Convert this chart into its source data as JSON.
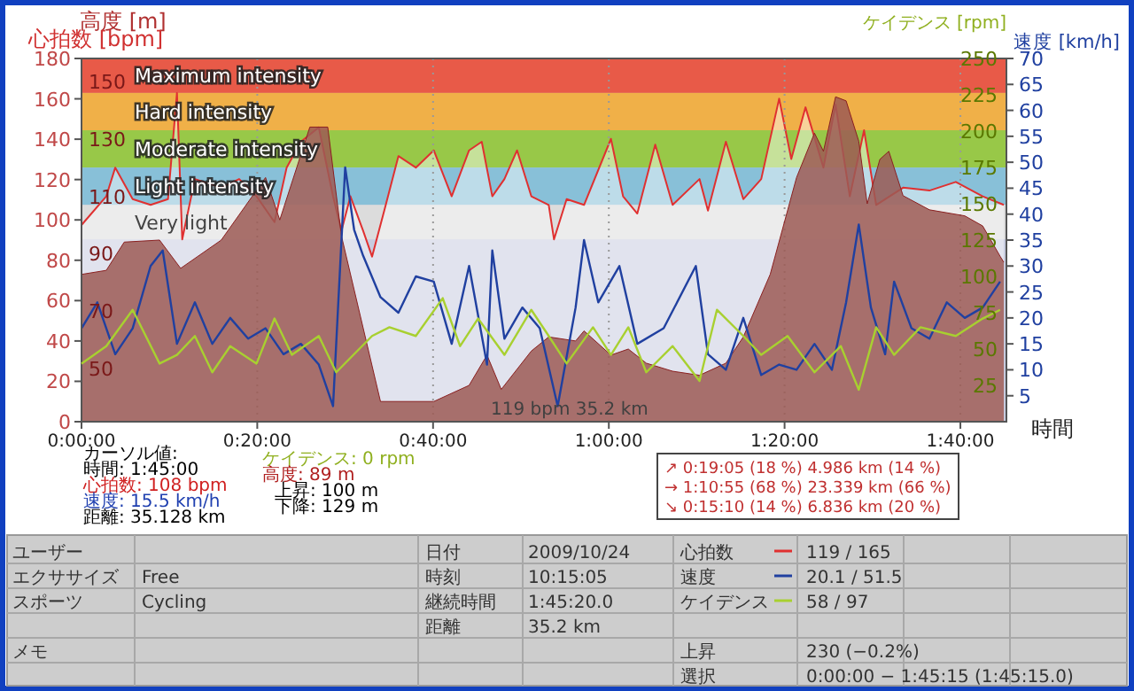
{
  "chart_data": [
    {
      "type": "area",
      "xlabel": "時間",
      "ylabel": "高度 [m]",
      "y2label": "速度 [km/h]",
      "xlim": [
        0,
        1.754
      ],
      "xticks": [
        {
          "value": 0,
          "label": "0:00:00"
        },
        {
          "value": 0.3333,
          "label": "0:20:00"
        },
        {
          "value": 0.6667,
          "label": "0:40:00"
        },
        {
          "value": 1,
          "label": "1:00:00"
        },
        {
          "value": 1.3333,
          "label": "1:20:00"
        },
        {
          "value": 1.6667,
          "label": "1:40:00"
        }
      ],
      "ylim": [
        0,
        180
      ],
      "yticks": [
        0,
        20,
        40,
        60,
        80,
        100,
        120,
        140,
        160,
        180
      ],
      "y2lim": [
        0,
        70
      ],
      "y2ticks": [
        5,
        10,
        15,
        20,
        25,
        30,
        35,
        40,
        45,
        50,
        55,
        60,
        65,
        70
      ],
      "grid": "x",
      "legend": "bottom",
      "series": [
        {
          "color": "#9c5a55",
          "x": [
            0,
            0.047,
            0.081,
            0.148,
            0.188,
            0.265,
            0.349,
            0.376,
            0.433,
            0.467,
            0.493,
            0.567,
            0.668,
            0.735,
            0.769,
            0.796,
            0.853,
            0.886,
            0.937,
            0.953,
            1.004,
            1.037,
            1.071,
            1.121,
            1.172,
            1.222,
            1.255,
            1.306,
            1.356,
            1.39,
            1.407,
            1.43,
            1.45,
            1.474,
            1.49,
            1.514,
            1.531,
            1.558,
            1.608,
            1.675,
            1.709,
            1.742,
            1.749
          ],
          "values": [
            73,
            75,
            89,
            90,
            76,
            90,
            121,
            100,
            146,
            146,
            92,
            10,
            10,
            18,
            33,
            16,
            35,
            42,
            40,
            45,
            33,
            36,
            29,
            25,
            23,
            29,
            42,
            73,
            121,
            143,
            134,
            161,
            159,
            139,
            108,
            130,
            134,
            112,
            105,
            102,
            97,
            82,
            79
          ]
        },
        {
          "type": "line",
          "axis": "y2",
          "name": "速度",
          "color": "#2040a0",
          "x": [
            0,
            0.03,
            0.064,
            0.097,
            0.131,
            0.154,
            0.181,
            0.215,
            0.248,
            0.282,
            0.316,
            0.349,
            0.383,
            0.416,
            0.45,
            0.477,
            0.5,
            0.517,
            0.534,
            0.567,
            0.601,
            0.634,
            0.668,
            0.702,
            0.735,
            0.769,
            0.779,
            0.802,
            0.836,
            0.869,
            0.903,
            0.937,
            0.953,
            0.98,
            1.02,
            1.054,
            1.104,
            1.165,
            1.188,
            1.222,
            1.255,
            1.289,
            1.323,
            1.356,
            1.39,
            1.423,
            1.45,
            1.474,
            1.497,
            1.524,
            1.541,
            1.574,
            1.608,
            1.641,
            1.675,
            1.709,
            1.742
          ],
          "values": [
            18,
            23,
            13,
            18,
            30,
            33,
            15,
            23,
            15,
            20,
            16,
            18,
            13,
            15,
            11,
            3,
            49,
            37,
            32,
            24,
            21,
            28,
            27,
            15,
            30,
            11,
            33,
            16,
            22,
            18,
            3,
            22,
            35,
            23,
            30,
            15,
            18,
            30,
            13,
            10,
            20,
            9,
            11,
            10,
            15,
            10,
            23,
            38,
            22,
            13,
            27,
            18,
            16,
            23,
            20,
            22,
            27
          ]
        }
      ],
      "annotations": [
        "カーソル値:",
        "時間: 1:45:00",
        "心拍数: 108 bpm",
        "速度: 15.5 km/h",
        "距離: 35.128 km",
        "ケイデンス: 0 rpm",
        "高度: 89 m",
        "上昇: 100 m",
        "下降: 129 m",
        "↗ 0:19:05 (18 %) 4.986 km (14 %)",
        "→ 1:10:55 (68 %) 23.339 km (66 %)",
        "↘ 0:15:10 (14 %) 6.836 km (20 %)",
        "119 bpm 35.2 km",
        "ユーザー",
        "エクササイズ",
        "Free",
        "スポーツ",
        "Cycling",
        "メモ",
        "日付",
        "2009/10/24",
        "時刻",
        "10:15:05",
        "継続時間",
        "1:45:20.0",
        "距離",
        "35.2 km",
        "119 / 165",
        "20.1 / 51.5",
        "58 / 97",
        "上昇",
        "230 (−0.2%)",
        "選択",
        "0:00:00 − 1:45:15 (1:45:15.0)"
      ]
    },
    {
      "type": "line",
      "ylabel": "心拍数 [bpm]",
      "y2label": "ケイデンス [rpm]",
      "tick_labels": "y",
      "xlim": [
        0,
        1.754
      ],
      "ylim": [
        31.5,
        158
      ],
      "yticks": [
        50,
        70,
        90,
        110,
        130,
        150
      ],
      "y2lim": [
        0,
        250
      ],
      "y2ticks": [
        25,
        50,
        75,
        100,
        125,
        150,
        175,
        200,
        225,
        250
      ],
      "legend": "bottom",
      "bands": [
        {
          "axis": "y",
          "from": 146,
          "to": 158,
          "label": "Maximum intensity",
          "color": "#e85a48"
        },
        {
          "axis": "y",
          "from": 133,
          "to": 146,
          "label": "Hard intensity",
          "color": "#f0b048"
        },
        {
          "axis": "y",
          "from": 120,
          "to": 133,
          "label": "Moderate intensity",
          "color": "#98c848"
        },
        {
          "axis": "y",
          "from": 107,
          "to": 120,
          "label": "Light intensity",
          "color": "#88c0d8"
        },
        {
          "axis": "y",
          "from": 95,
          "to": 107,
          "label": "Very light",
          "color": "#dcdcdc"
        }
      ],
      "series": [
        {
          "type": "area",
          "name": "心拍数",
          "color": "#e03030",
          "x": [
            0,
            0.047,
            0.064,
            0.097,
            0.131,
            0.164,
            0.181,
            0.191,
            0.215,
            0.265,
            0.299,
            0.332,
            0.366,
            0.389,
            0.416,
            0.45,
            0.477,
            0.493,
            0.51,
            0.534,
            0.551,
            0.577,
            0.601,
            0.634,
            0.668,
            0.702,
            0.735,
            0.759,
            0.779,
            0.802,
            0.826,
            0.853,
            0.886,
            0.896,
            0.92,
            0.953,
            1.004,
            1.027,
            1.054,
            1.088,
            1.121,
            1.172,
            1.188,
            1.222,
            1.255,
            1.289,
            1.323,
            1.346,
            1.373,
            1.407,
            1.43,
            1.457,
            1.484,
            1.507,
            1.558,
            1.608,
            1.658,
            1.709,
            1.749
          ],
          "values": [
            100,
            110,
            120,
            109,
            107,
            109,
            146,
            95,
            116,
            113,
            116,
            110,
            101,
            120,
            129,
            134,
            110,
            98,
            110,
            98,
            89,
            107,
            124,
            120,
            126,
            110,
            126,
            129,
            110,
            116,
            126,
            110,
            107,
            95,
            109,
            107,
            130,
            110,
            104,
            128,
            107,
            116,
            105,
            129,
            109,
            116,
            144,
            123,
            141,
            120,
            142,
            110,
            133,
            107,
            113,
            112,
            115,
            110,
            107
          ]
        },
        {
          "axis": "y2",
          "name": "ケイデンス",
          "color": "#a8d030",
          "x": [
            0,
            0.047,
            0.097,
            0.148,
            0.181,
            0.215,
            0.248,
            0.282,
            0.332,
            0.366,
            0.399,
            0.45,
            0.483,
            0.551,
            0.584,
            0.634,
            0.685,
            0.718,
            0.752,
            0.802,
            0.853,
            0.886,
            0.92,
            0.97,
            1.004,
            1.037,
            1.071,
            1.121,
            1.172,
            1.205,
            1.255,
            1.289,
            1.339,
            1.39,
            1.44,
            1.474,
            1.507,
            1.541,
            1.591,
            1.658,
            1.709,
            1.742
          ],
          "values": [
            40,
            52,
            77,
            40,
            46,
            59,
            34,
            52,
            40,
            71,
            46,
            59,
            34,
            59,
            65,
            59,
            85,
            52,
            71,
            46,
            77,
            59,
            40,
            65,
            46,
            65,
            34,
            52,
            28,
            77,
            59,
            46,
            59,
            34,
            52,
            22,
            65,
            46,
            65,
            59,
            71,
            77
          ]
        }
      ]
    }
  ]
}
